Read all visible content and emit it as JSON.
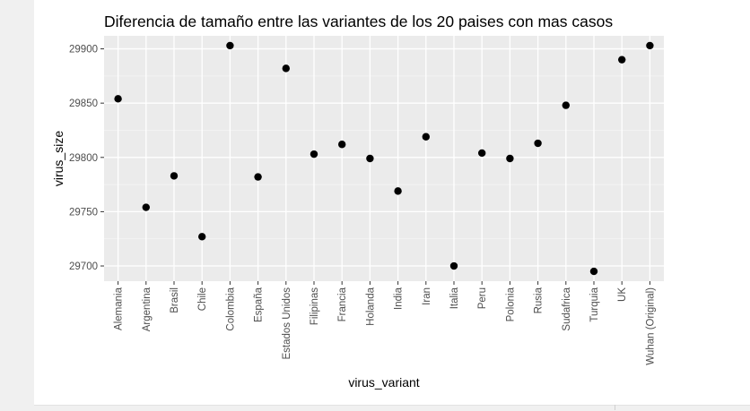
{
  "chart_data": {
    "type": "scatter",
    "title": "Diferencia de tamaño entre las variantes de los 20 paises con mas casos",
    "xlabel": "virus_variant",
    "ylabel": "virus_size",
    "categories": [
      "Alemania",
      "Argentina",
      "Brasil",
      "Chile",
      "Colombia",
      "España",
      "Estados Unidos",
      "Filipinas",
      "Francia",
      "Holanda",
      "India",
      "Iran",
      "Italia",
      "Peru",
      "Polonia",
      "Rusia",
      "Sudafrica",
      "Turquia",
      "UK",
      "Wuhan (Original)"
    ],
    "values": [
      29854,
      29754,
      29783,
      29727,
      29903,
      29782,
      29882,
      29803,
      29812,
      29799,
      29769,
      29819,
      29700,
      29804,
      29799,
      29813,
      29848,
      29695,
      29890,
      29903
    ],
    "yticks": [
      29700,
      29750,
      29800,
      29850,
      29900
    ],
    "ylim": [
      29686,
      29912
    ],
    "grid": true,
    "panel_background": "#ebebeb",
    "point_color": "#000000"
  }
}
